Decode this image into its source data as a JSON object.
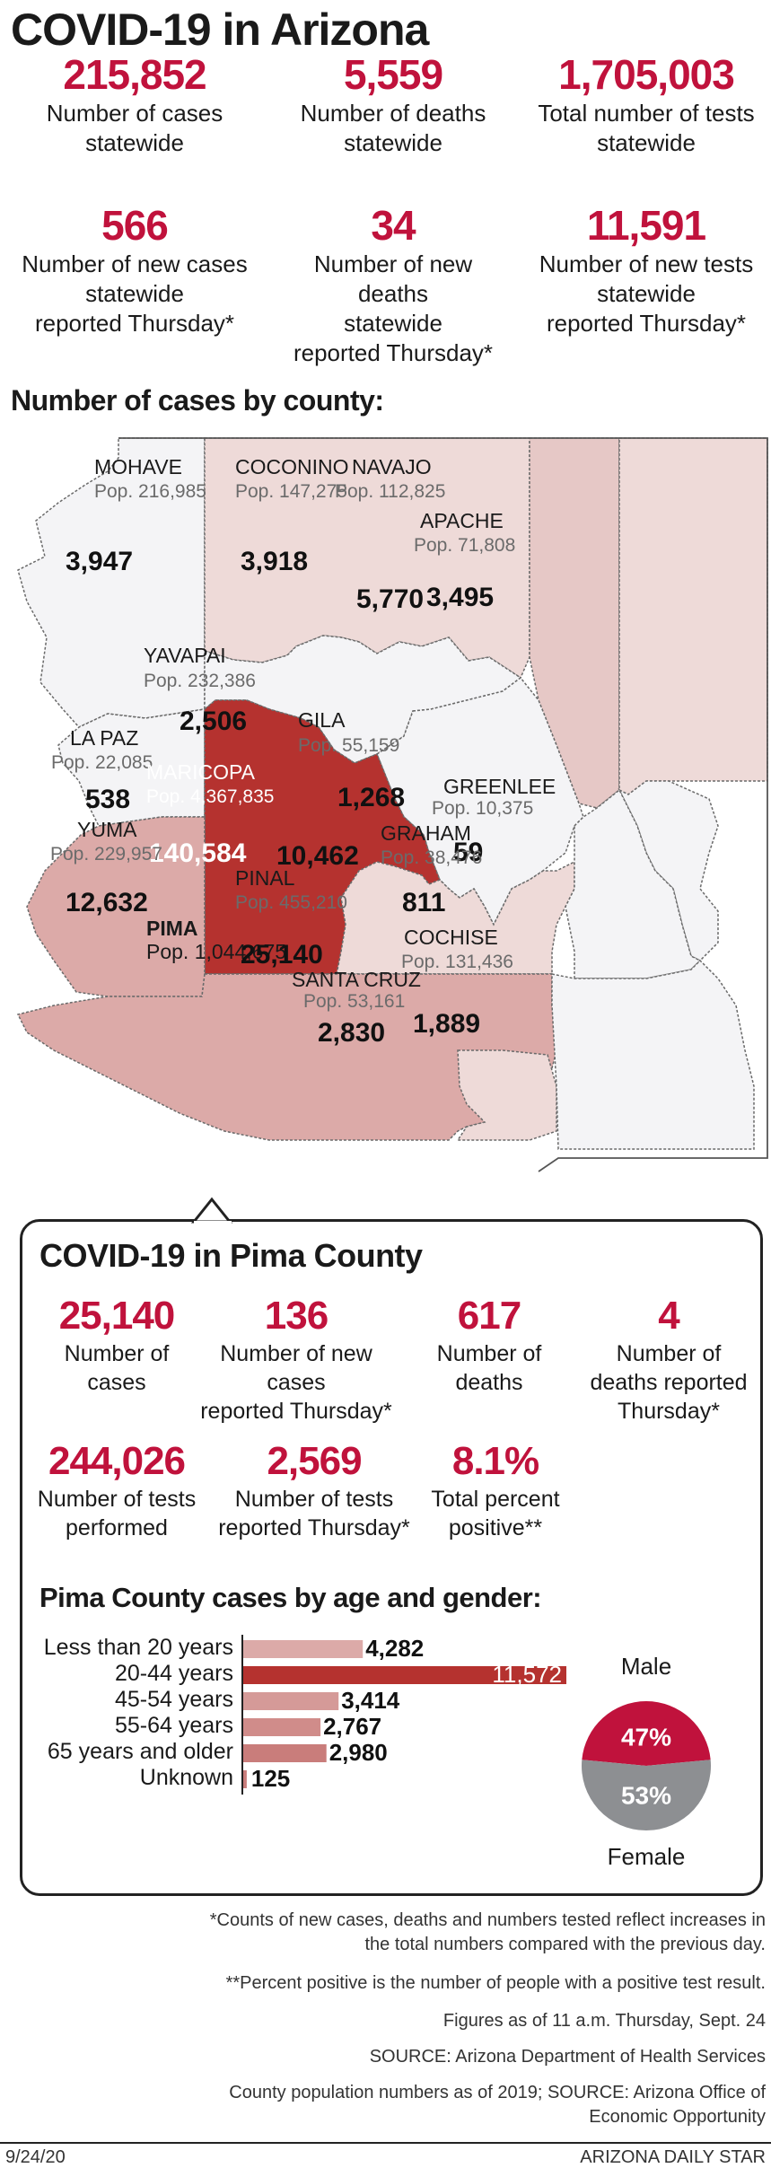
{
  "title": "COVID-19 in Arizona",
  "statewide": [
    {
      "value": "215,852",
      "label": [
        "Number of cases",
        "statewide"
      ]
    },
    {
      "value": "5,559",
      "label": [
        "Number of deaths",
        "statewide"
      ]
    },
    {
      "value": "1,705,003",
      "label": [
        "Total number of tests",
        "statewide"
      ]
    },
    {
      "value": "566",
      "label": [
        "Number of new cases",
        "statewide",
        "reported Thursday*"
      ]
    },
    {
      "value": "34",
      "label": [
        "Number of new deaths",
        "statewide",
        "reported Thursday*"
      ]
    },
    {
      "value": "11,591",
      "label": [
        "Number of new tests",
        "statewide",
        "reported Thursday*"
      ]
    }
  ],
  "map": {
    "heading": "Number of cases by county:",
    "counties": [
      {
        "name": "MOHAVE",
        "pop": "Pop. 216,985",
        "cases": "3,947"
      },
      {
        "name": "COCONINO",
        "pop": "Pop. 147,275",
        "cases": "3,918"
      },
      {
        "name": "NAVAJO",
        "pop": "Pop. 112,825",
        "cases": "5,770"
      },
      {
        "name": "APACHE",
        "pop": "Pop. 71,808",
        "cases": "3,495"
      },
      {
        "name": "YAVAPAI",
        "pop": "Pop. 232,386",
        "cases": "2,506"
      },
      {
        "name": "LA PAZ",
        "pop": "Pop. 22,085",
        "cases": "538"
      },
      {
        "name": "GILA",
        "pop": "Pop. 55,159",
        "cases": "1,268"
      },
      {
        "name": "MARICOPA",
        "pop": "Pop. 4,367,835",
        "cases": "140,584"
      },
      {
        "name": "GREENLEE",
        "pop": "Pop. 10,375",
        "cases": "59"
      },
      {
        "name": "YUMA",
        "pop": "Pop. 229,957",
        "cases": "12,632"
      },
      {
        "name": "PINAL",
        "pop": "Pop. 455,210",
        "cases": "10,462"
      },
      {
        "name": "GRAHAM",
        "pop": "Pop. 38,476",
        "cases": "811"
      },
      {
        "name": "PIMA",
        "pop": "Pop. 1,044,675",
        "cases": "25,140"
      },
      {
        "name": "COCHISE",
        "pop": "Pop. 131,436",
        "cases": "1,889"
      },
      {
        "name": "SANTA CRUZ",
        "pop": "Pop. 53,161",
        "cases": "2,830"
      }
    ],
    "colors": {
      "high": "#b5322f",
      "mid": "#dcaaa8",
      "low": "#eedad8",
      "lowest": "#f4f4f6",
      "border": "#6a6a6a"
    }
  },
  "pima": {
    "heading": "COVID-19 in Pima County",
    "stats": [
      {
        "value": "25,140",
        "label": [
          "Number of",
          "cases"
        ]
      },
      {
        "value": "136",
        "label": [
          "Number of new cases",
          "reported Thursday*"
        ]
      },
      {
        "value": "617",
        "label": [
          "Number of",
          "deaths"
        ]
      },
      {
        "value": "4",
        "label": [
          "Number of",
          "deaths reported",
          "Thursday*"
        ]
      },
      {
        "value": "244,026",
        "label": [
          "Number of tests",
          "performed"
        ]
      },
      {
        "value": "2,569",
        "label": [
          "Number of tests",
          "reported Thursday*"
        ]
      },
      {
        "value": "8.1%",
        "label": [
          "Total percent",
          "positive**"
        ]
      }
    ],
    "age_heading": "Pima County cases by age and gender:"
  },
  "chart_data": [
    {
      "type": "bar",
      "orientation": "horizontal",
      "title": "Pima County cases by age and gender:",
      "categories": [
        "Less than 20 years",
        "20-44 years",
        "45-54 years",
        "55-64 years",
        "65 years and older",
        "Unknown"
      ],
      "values": [
        4282,
        11572,
        3414,
        2767,
        2980,
        125
      ],
      "value_labels": [
        "4,282",
        "11,572",
        "3,414",
        "2,767",
        "2,980",
        "125"
      ],
      "bar_colors": [
        "#dcaaa8",
        "#b5322f",
        "#d59a98",
        "#d08c8a",
        "#c97d7b",
        "#c97d7b"
      ]
    },
    {
      "type": "pie",
      "labels": [
        "Male",
        "Female"
      ],
      "values": [
        47,
        53
      ],
      "value_labels": [
        "47%",
        "53%"
      ],
      "colors": [
        "#c0123c",
        "#8d8f92"
      ]
    }
  ],
  "footnotes": [
    [
      "*Counts of new cases, deaths and numbers tested reflect increases in",
      "the total numbers compared with the previous day."
    ],
    [
      "**Percent positive is the number of people with a positive test result."
    ],
    [
      "Figures as of 11 a.m. Thursday, Sept. 24"
    ],
    [
      "SOURCE: Arizona Department of Health Services"
    ],
    [
      "County population numbers as of 2019; SOURCE: Arizona Office of",
      "Economic Opportunity"
    ]
  ],
  "footer": {
    "date": "9/24/20",
    "brand": "ARIZONA DAILY STAR"
  }
}
